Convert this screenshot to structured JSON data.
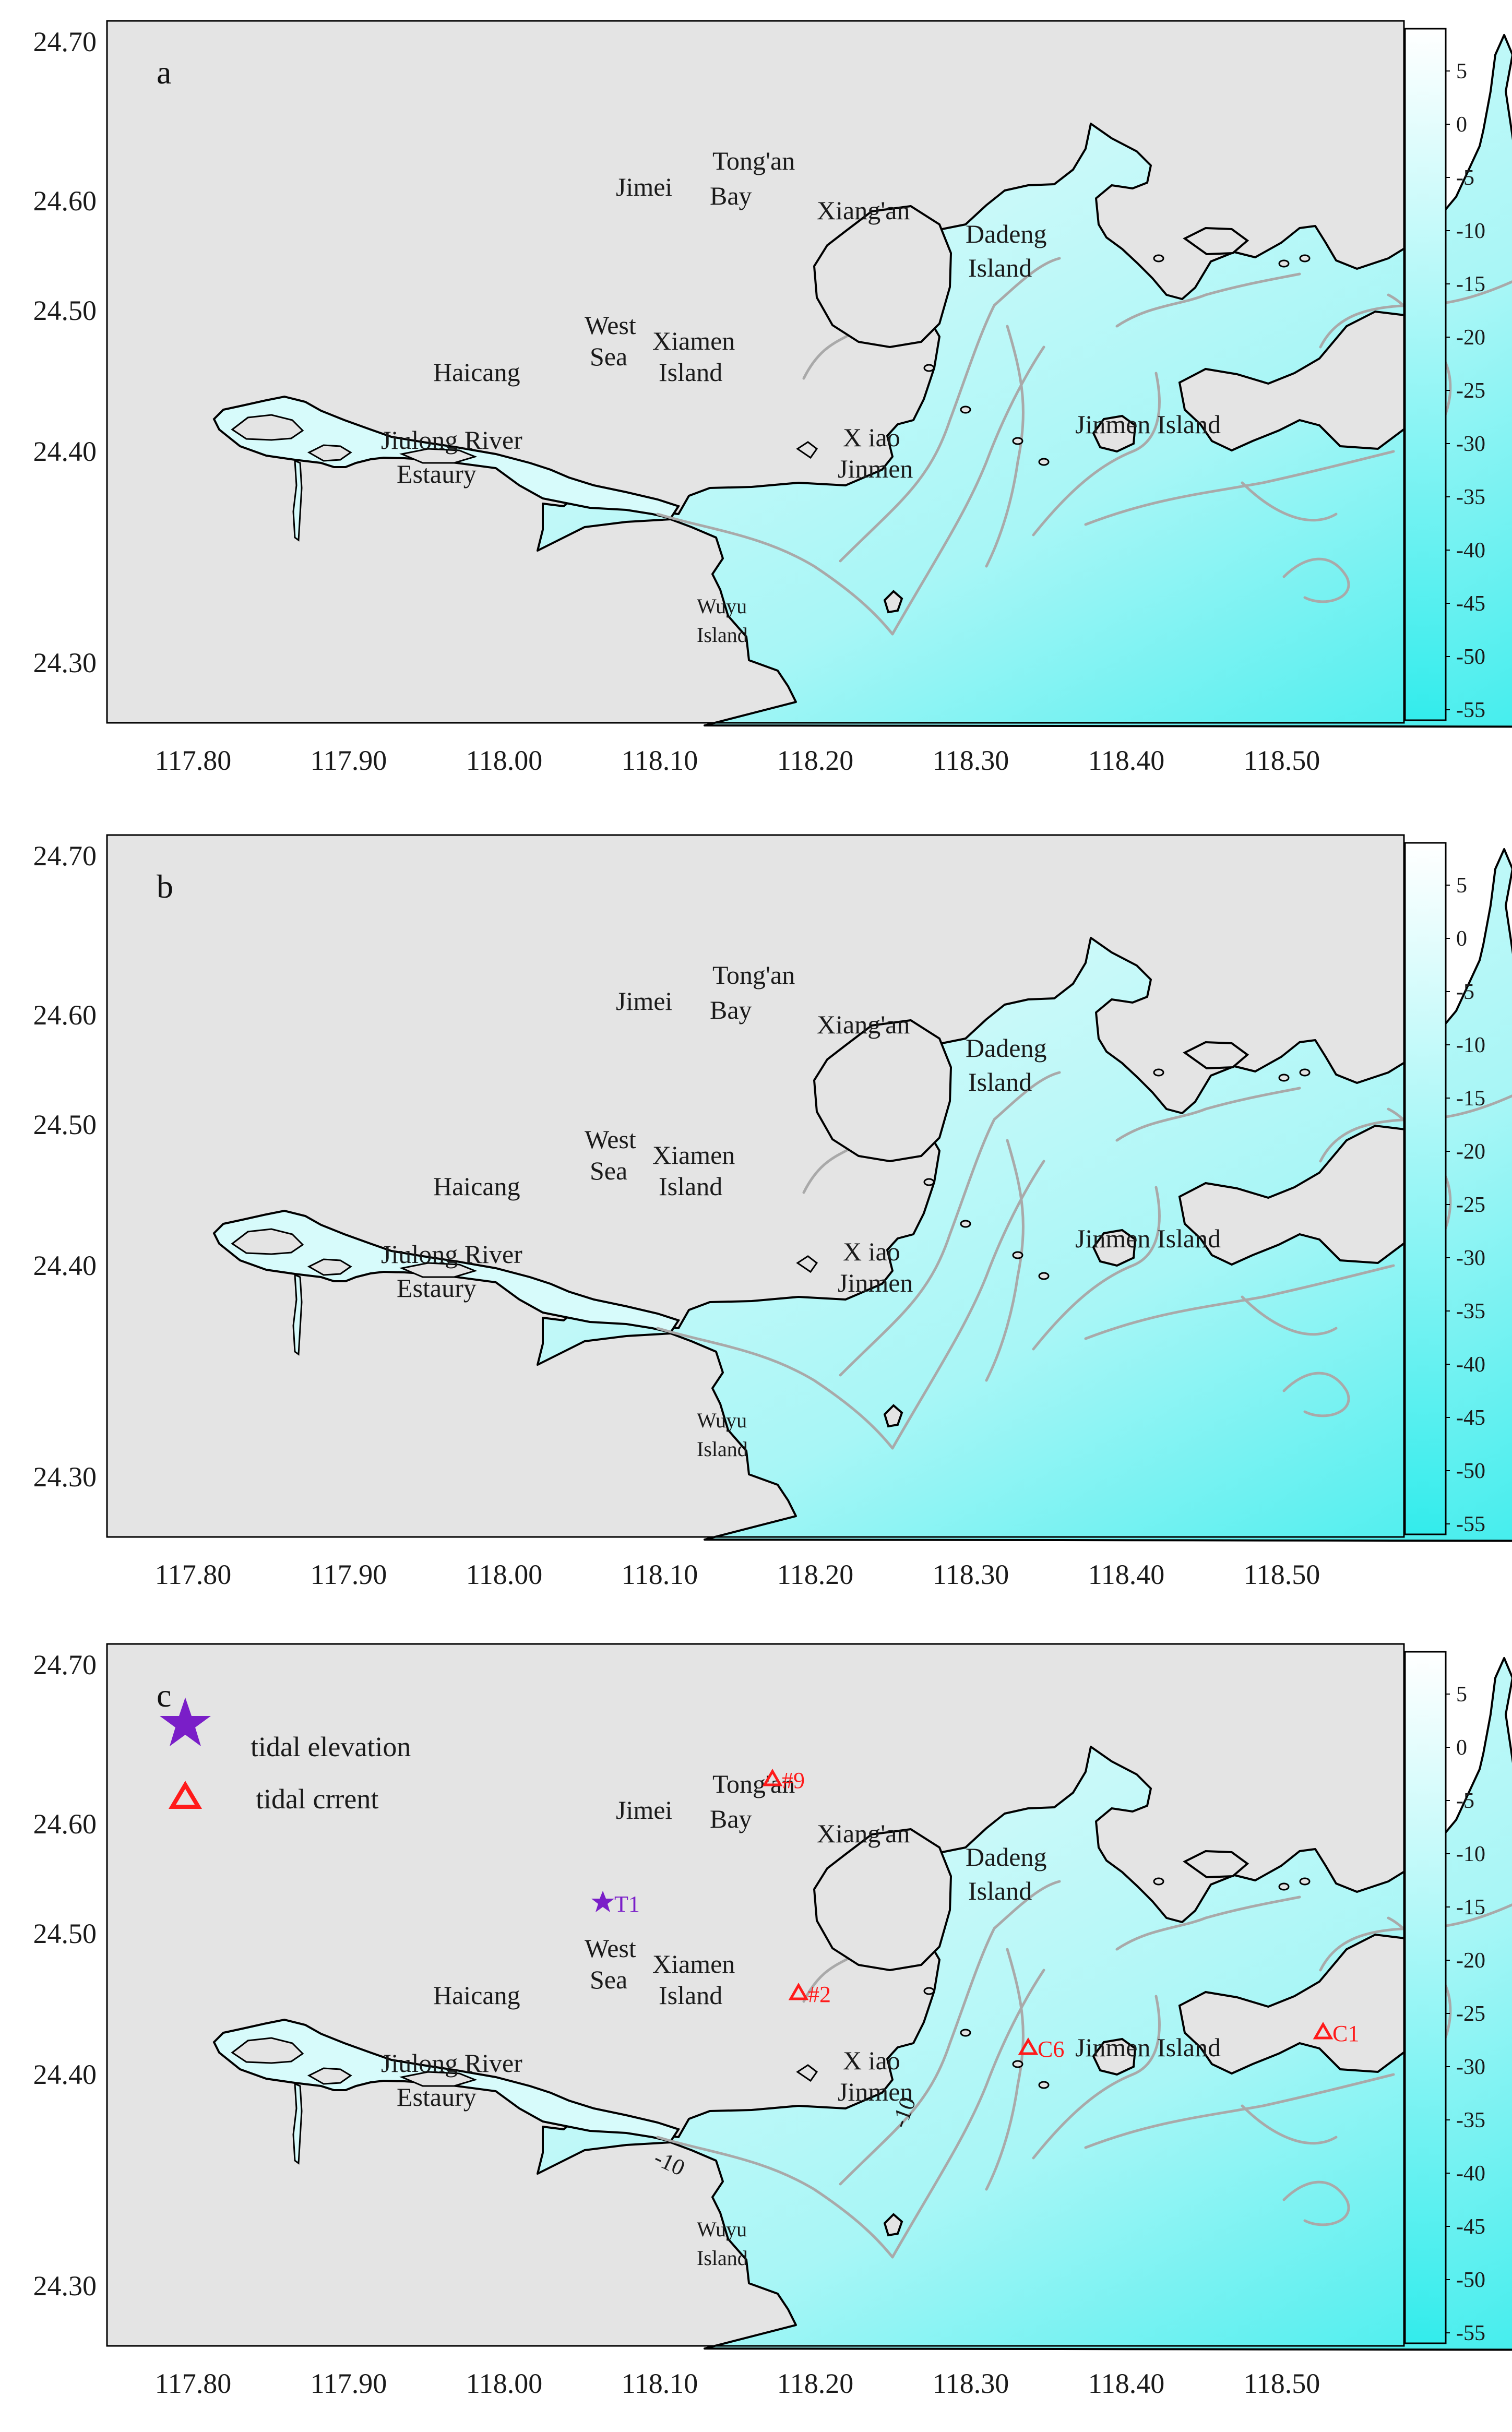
{
  "figure": {
    "x_ticks": [
      "117.80",
      "117.90",
      "118.00",
      "118.10",
      "118.20",
      "118.30",
      "118.40",
      "118.50"
    ],
    "y_ticks": [
      "24.70",
      "24.60",
      "24.50",
      "24.40",
      "24.30"
    ],
    "colorbar_ticks": [
      "5",
      "0",
      "-5",
      "-10",
      "-15",
      "-20",
      "-25",
      "-30",
      "-35",
      "-40",
      "-45",
      "-50",
      "-55"
    ],
    "colors": {
      "land": "#e4e4e4",
      "coastline": "#000000",
      "contour": "#a9a9a9",
      "water_shallow": "#e6fcfc",
      "water_deep": "#33ecec",
      "tidal_elevation_marker": "#7a1ec8",
      "tidal_current_marker": "#ff1a1a"
    }
  },
  "place_labels": {
    "tongan_1": "Tong'an",
    "tongan_2": "Bay",
    "jimei": "Jimei",
    "xiangan": "Xiang'an",
    "dadeng_1": "Dadeng",
    "dadeng_2": "Island",
    "west_1": "West",
    "west_2": "Sea",
    "xiamen_1": "Xiamen",
    "xiamen_2": "Island",
    "haicang": "Haicang",
    "jiulong_1": "Jiulong River",
    "jiulong_2": "Estaury",
    "xiao_1": "X iao",
    "xiao_2": "Jinmen",
    "jinmen": "Jinmen Island",
    "wuyu_1": "Wuyu",
    "wuyu_2": "Island"
  },
  "panels": [
    {
      "letter": "a"
    },
    {
      "letter": "b"
    },
    {
      "letter": "c",
      "legend": {
        "elevation_label": "tidal elevation",
        "current_label": "tidal crrent"
      },
      "stations": [
        {
          "name": "T1",
          "kind": "elevation"
        },
        {
          "name": "#9",
          "kind": "current"
        },
        {
          "name": "#2",
          "kind": "current"
        },
        {
          "name": "C6",
          "kind": "current"
        },
        {
          "name": "C1",
          "kind": "current"
        }
      ],
      "contour_labels": [
        "-10",
        "-10"
      ]
    }
  ]
}
